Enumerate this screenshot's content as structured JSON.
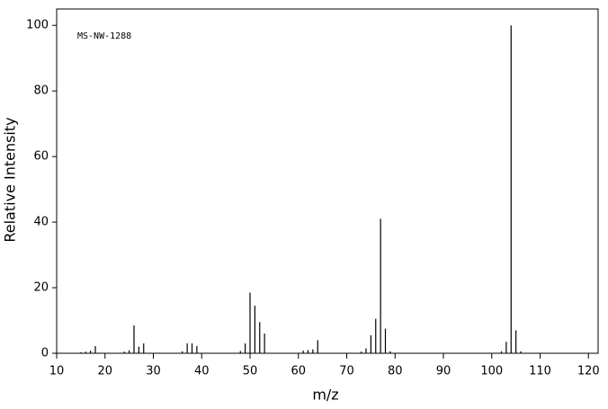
{
  "chart_data": {
    "type": "spectrum",
    "annotation": "MS-NW-1288",
    "xlabel": "m/z",
    "ylabel": "Relative Intensity",
    "x": [
      15,
      16,
      17,
      18,
      24,
      25,
      26,
      27,
      28,
      36,
      37,
      38,
      39,
      48,
      49,
      50,
      51,
      52,
      53,
      61,
      62,
      63,
      64,
      73,
      74,
      75,
      76,
      77,
      78,
      79,
      102,
      103,
      104,
      105,
      106
    ],
    "values": [
      0.3,
      0.5,
      0.8,
      2.2,
      0.5,
      0.9,
      8.5,
      2,
      3,
      0.6,
      3,
      3,
      2.2,
      0.7,
      3,
      18.5,
      14.5,
      9.5,
      6,
      0.8,
      1,
      1.2,
      4,
      0.5,
      1.5,
      5.5,
      10.5,
      41,
      7.5,
      0.6,
      0.6,
      3.5,
      100,
      7,
      0.6
    ],
    "color": "#000000",
    "xlim": [
      10,
      122
    ],
    "ylim": [
      0,
      105
    ],
    "xticks": [
      10,
      20,
      30,
      40,
      50,
      60,
      70,
      80,
      90,
      100,
      110,
      120
    ],
    "yticks": [
      0,
      20,
      40,
      60,
      80,
      100
    ]
  }
}
